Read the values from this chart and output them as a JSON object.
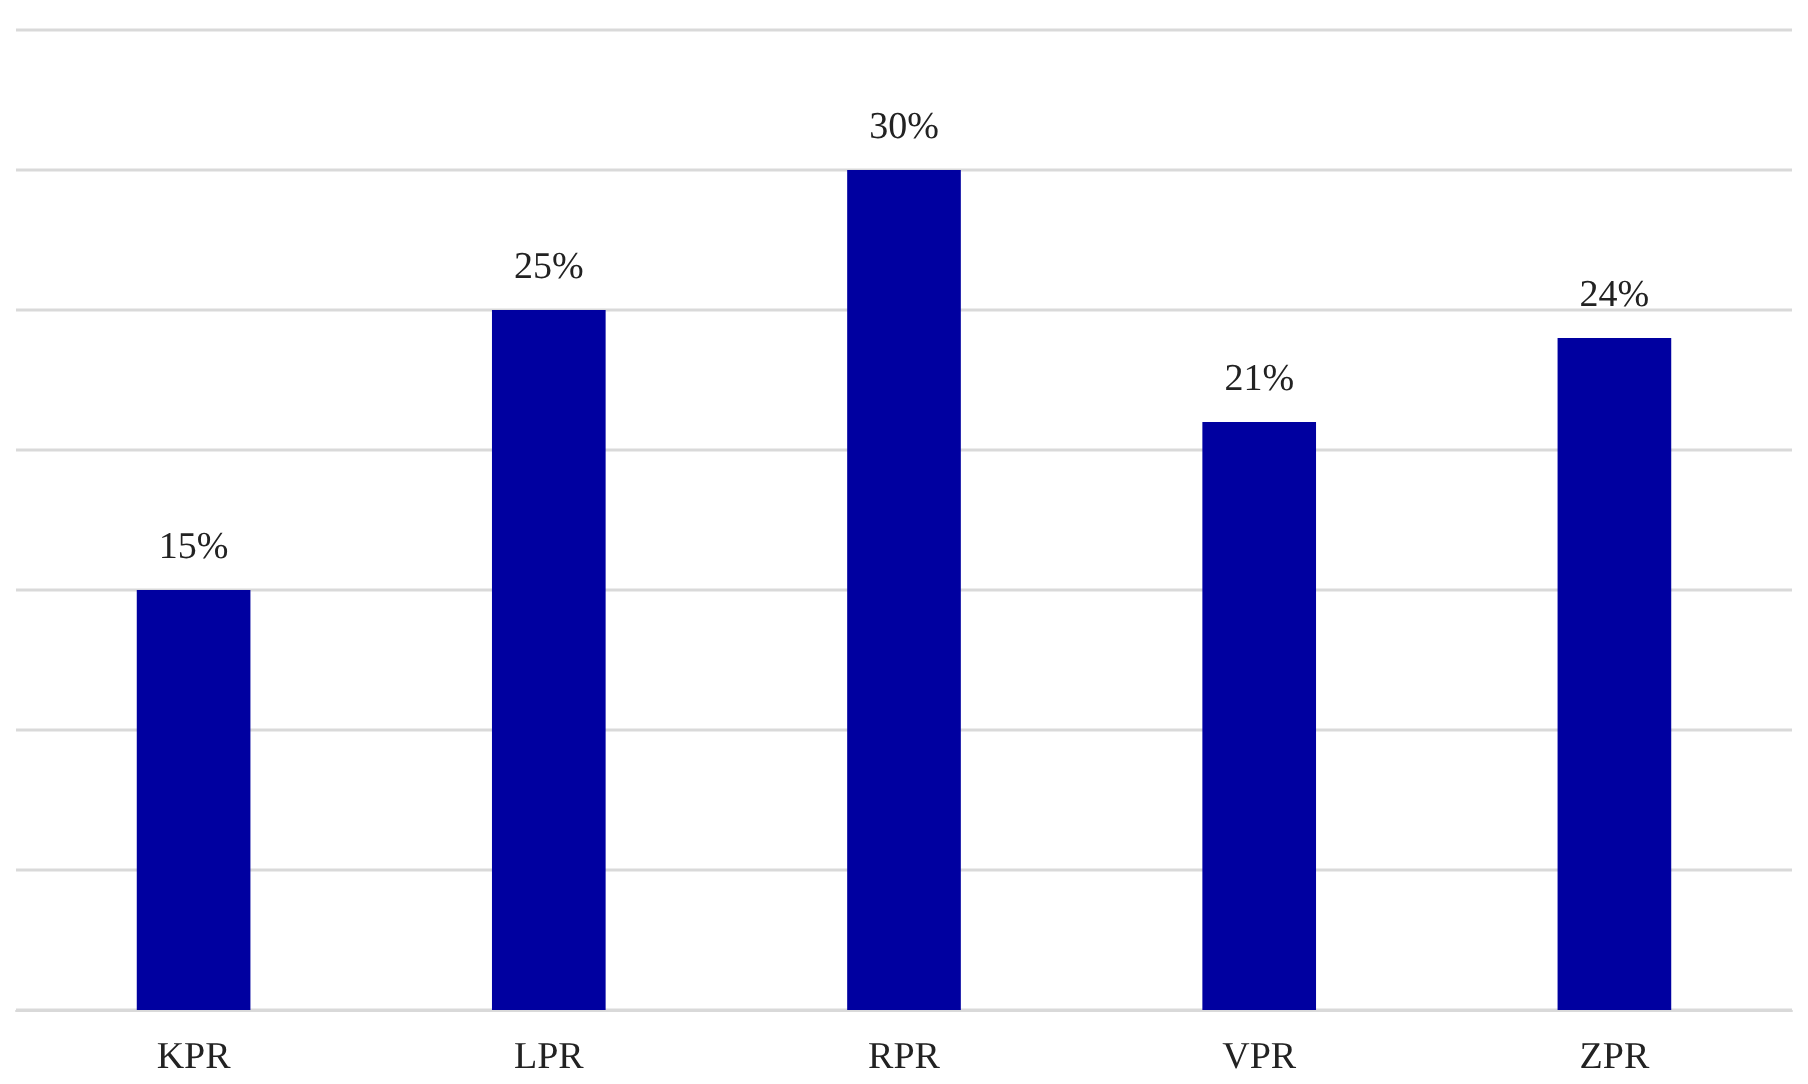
{
  "chart_data": {
    "type": "bar",
    "categories": [
      "KPR",
      "LPR",
      "RPR",
      "VPR",
      "ZPR"
    ],
    "series": [
      {
        "color": "#0000a0",
        "values": [
          15,
          25,
          30,
          21,
          24
        ],
        "value_labels": [
          "15%",
          "25%",
          "30%",
          "21%",
          "24%"
        ]
      }
    ],
    "ylim": [
      0,
      35
    ],
    "yticks": [
      {
        "value": 0,
        "label": null
      },
      {
        "value": 5,
        "label": null
      },
      {
        "value": 10,
        "label": null
      },
      {
        "value": 15,
        "label": null
      },
      {
        "value": 20,
        "label": null
      },
      {
        "value": 25,
        "label": null
      },
      {
        "value": 30,
        "label": null
      },
      {
        "value": 35,
        "label": null
      }
    ],
    "grid": "y",
    "tick_labels": "x"
  }
}
